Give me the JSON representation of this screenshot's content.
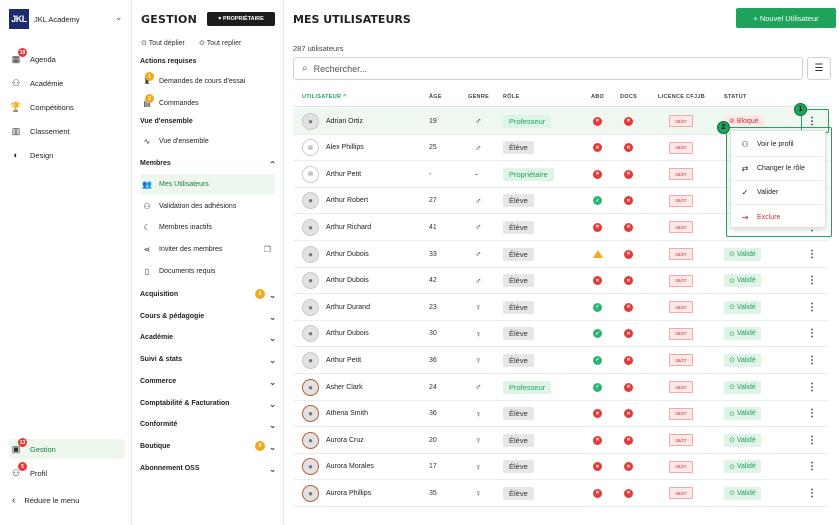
{
  "app": {
    "logo": "JKL",
    "name": "JKL Academy"
  },
  "left_nav": [
    {
      "label": "Agenda",
      "icon": "calendar-icon",
      "badge": "19"
    },
    {
      "label": "Académie",
      "icon": "users-icon",
      "badge": ""
    },
    {
      "label": "Compétitions",
      "icon": "trophy-icon",
      "badge": ""
    },
    {
      "label": "Classement",
      "icon": "chart-icon",
      "badge": ""
    },
    {
      "label": "Design",
      "icon": "palette-icon",
      "badge": ""
    }
  ],
  "left_bottom": [
    {
      "label": "Gestion",
      "icon": "manage-icon",
      "badge": "13",
      "active": true
    },
    {
      "label": "Profil",
      "icon": "user-icon",
      "badge": "5",
      "active": false
    }
  ],
  "reduce_label": "Réduire le menu",
  "mid": {
    "title": "GESTION",
    "role_badge": "PROPRIÉTAIRE",
    "expand_all": "Tout déplier",
    "collapse_all": "Tout replier",
    "sec_actions": "Actions requises",
    "item_demandes": "Demandes de cours d'essai",
    "item_demandes_badge": "1",
    "item_commandes": "Commandes",
    "item_commandes_badge": "2",
    "sec_vue": "Vue d'ensemble",
    "item_vue": "Vue d'ensemble",
    "sec_membres": "Membres",
    "item_mes_utilisateurs": "Mes Utilisateurs",
    "item_validation": "Validation des adhésions",
    "item_inactifs": "Membres inactifs",
    "item_inviter": "Inviter des membres",
    "item_documents": "Documents requis",
    "sections": [
      {
        "label": "Acquisition",
        "badge": "1"
      },
      {
        "label": "Cours & pédagogie",
        "badge": ""
      },
      {
        "label": "Académie",
        "badge": ""
      },
      {
        "label": "Suivi & stats",
        "badge": ""
      },
      {
        "label": "Commerce",
        "badge": ""
      },
      {
        "label": "Comptabilité & Facturation",
        "badge": ""
      },
      {
        "label": "Conformité",
        "badge": ""
      },
      {
        "label": "Boutique",
        "badge": "3"
      },
      {
        "label": "Abonnement OSS",
        "badge": ""
      }
    ]
  },
  "main": {
    "title": "MES UTILISATEURS",
    "add_button": "+ Nouvel Utilisateur",
    "count": "287 utilisateurs",
    "search_placeholder": "Rechercher...",
    "columns": {
      "user": "UTILISATEUR ^",
      "age": "ÂGE",
      "genre": "GENRE",
      "role": "RÔLE",
      "abo": "ABO",
      "docs": "DOCS",
      "licence": "LICENCE CFJJB",
      "statut": "STATUT"
    },
    "licence_text": "26/27",
    "rows": [
      {
        "name": "Adrian Ortiz",
        "age": "19",
        "genre": "♂",
        "role": "Professeur",
        "abo": "r",
        "docs": "r",
        "statut": "Bloqué",
        "av": "plain"
      },
      {
        "name": "Alex Phillips",
        "age": "25",
        "genre": "♂",
        "role": "Élève",
        "abo": "r",
        "docs": "r",
        "statut": "",
        "av": "doc"
      },
      {
        "name": "Arthur Petit",
        "age": "-",
        "genre": "-",
        "role": "Propriétaire",
        "abo": "r",
        "docs": "r",
        "statut": "",
        "av": "doc"
      },
      {
        "name": "Arthur Robert",
        "age": "27",
        "genre": "♂",
        "role": "Élève",
        "abo": "g",
        "docs": "r",
        "statut": "",
        "av": "plain"
      },
      {
        "name": "Arthur Richard",
        "age": "41",
        "genre": "♂",
        "role": "Élève",
        "abo": "r",
        "docs": "r",
        "statut": "",
        "av": "plain"
      },
      {
        "name": "Arthur Dubois",
        "age": "33",
        "genre": "♂",
        "role": "Élève",
        "abo": "w",
        "docs": "r",
        "statut": "Validé",
        "av": "plain"
      },
      {
        "name": "Arthur Dubois",
        "age": "42",
        "genre": "♂",
        "role": "Élève",
        "abo": "r",
        "docs": "r",
        "statut": "Validé",
        "av": "plain"
      },
      {
        "name": "Arthur Durand",
        "age": "23",
        "genre": "♀",
        "role": "Élève",
        "abo": "g",
        "docs": "r",
        "statut": "Validé",
        "av": "plain"
      },
      {
        "name": "Arthur Dubois",
        "age": "30",
        "genre": "♀",
        "role": "Élève",
        "abo": "g",
        "docs": "r",
        "statut": "Validé",
        "av": "plain"
      },
      {
        "name": "Arthur Petit",
        "age": "36",
        "genre": "♀",
        "role": "Élève",
        "abo": "g",
        "docs": "r",
        "statut": "Validé",
        "av": "plain"
      },
      {
        "name": "Asher Clark",
        "age": "24",
        "genre": "♂",
        "role": "Professeur",
        "abo": "g",
        "docs": "r",
        "statut": "Validé",
        "av": "ring"
      },
      {
        "name": "Athena Smith",
        "age": "36",
        "genre": "♀",
        "role": "Élève",
        "abo": "r",
        "docs": "r",
        "statut": "Validé",
        "av": "ring"
      },
      {
        "name": "Aurora Cruz",
        "age": "20",
        "genre": "♀",
        "role": "Élève",
        "abo": "r",
        "docs": "r",
        "statut": "Validé",
        "av": "ring"
      },
      {
        "name": "Aurora Morales",
        "age": "17",
        "genre": "♀",
        "role": "Élève",
        "abo": "r",
        "docs": "r",
        "statut": "Validé",
        "av": "ring"
      },
      {
        "name": "Aurora Phillips",
        "age": "35",
        "genre": "♀",
        "role": "Élève",
        "abo": "r",
        "docs": "r",
        "statut": "Validé",
        "av": "ring"
      }
    ],
    "menu": [
      "Voir le profil",
      "Changer le rôle",
      "Valider",
      "Exclure"
    ],
    "callouts": [
      "1",
      "2"
    ]
  }
}
